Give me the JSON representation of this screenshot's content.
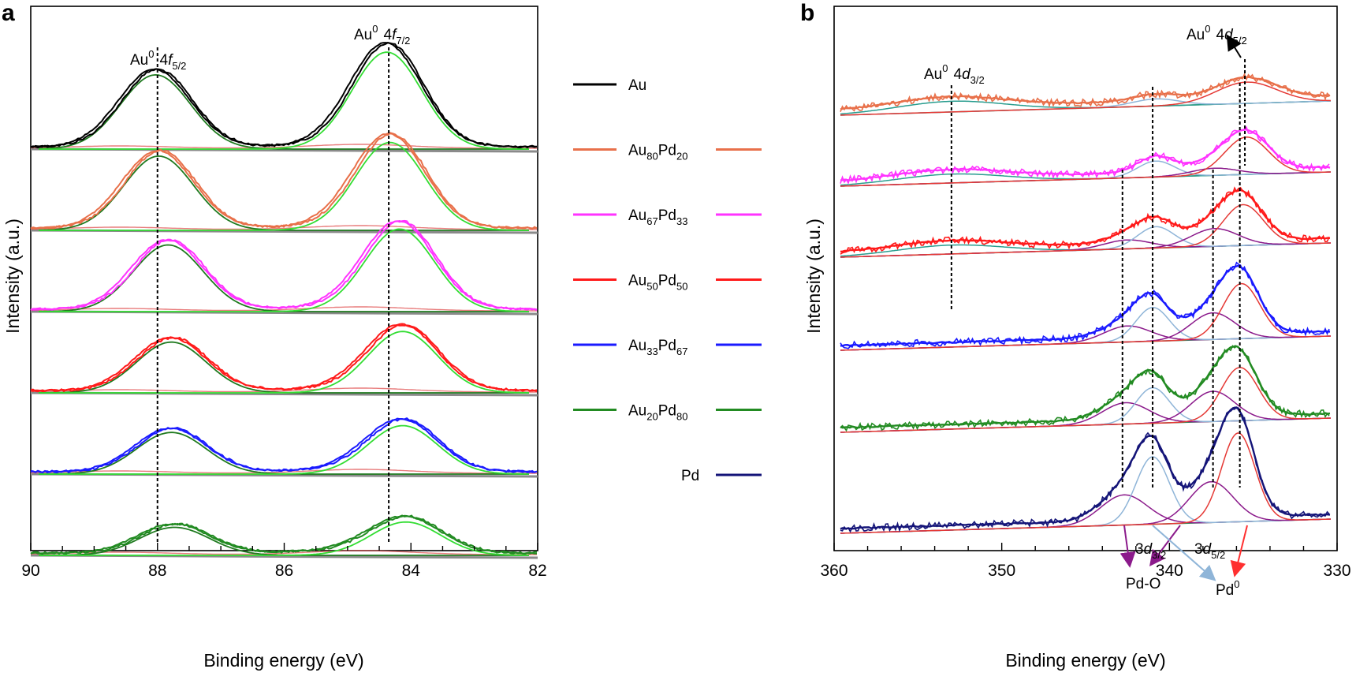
{
  "chart_data": [
    {
      "panel": "a",
      "type": "line",
      "title": "",
      "xlabel": "Binding energy (eV)",
      "ylabel": "Intensity (a.u.)",
      "xlim": [
        90,
        82
      ],
      "xticks": [
        90,
        88,
        86,
        84,
        82
      ],
      "x_reversed": true,
      "grid": false,
      "legend": {
        "placement": "right",
        "entries": [
          {
            "label": "Au",
            "color": "#000000"
          },
          {
            "label": "Au80Pd20",
            "color": "#e8704a"
          },
          {
            "label": "Au67Pd33",
            "color": "#ff33ff"
          },
          {
            "label": "Au50Pd50",
            "color": "#ff1a1a"
          },
          {
            "label": "Au33Pd67",
            "color": "#1a1aff"
          },
          {
            "label": "Au20Pd80",
            "color": "#228b22"
          },
          {
            "label": "Pd",
            "color": "#141478"
          }
        ]
      },
      "reference_lines": [
        {
          "x": 88.0,
          "label": "Au0 4f5/2"
        },
        {
          "x": 84.35,
          "label": "Au0 4f7/2"
        }
      ],
      "series": [
        {
          "name": "Au",
          "color": "#000000",
          "offset": 5,
          "peaks": [
            {
              "x": 88.0,
              "h": 0.98
            },
            {
              "x": 84.35,
              "h": 1.28
            }
          ]
        },
        {
          "name": "Au80Pd20",
          "color": "#e8704a",
          "offset": 4,
          "peaks": [
            {
              "x": 87.95,
              "h": 0.98
            },
            {
              "x": 84.3,
              "h": 1.16
            }
          ]
        },
        {
          "name": "Au67Pd33",
          "color": "#ff33ff",
          "offset": 3,
          "peaks": [
            {
              "x": 87.8,
              "h": 0.88
            },
            {
              "x": 84.15,
              "h": 1.09
            }
          ]
        },
        {
          "name": "Au50Pd50",
          "color": "#ff1a1a",
          "offset": 2,
          "peaks": [
            {
              "x": 87.75,
              "h": 0.67
            },
            {
              "x": 84.1,
              "h": 0.81
            }
          ]
        },
        {
          "name": "Au33Pd67",
          "color": "#1a1aff",
          "offset": 1,
          "peaks": [
            {
              "x": 87.75,
              "h": 0.55
            },
            {
              "x": 84.1,
              "h": 0.64
            }
          ]
        },
        {
          "name": "Au20Pd80",
          "color": "#228b22",
          "offset": 0,
          "peaks": [
            {
              "x": 87.7,
              "h": 0.37
            },
            {
              "x": 84.05,
              "h": 0.44
            }
          ]
        }
      ]
    },
    {
      "panel": "b",
      "type": "line",
      "title": "",
      "xlabel": "Binding energy (eV)",
      "ylabel": "Intensity (a.u.)",
      "xlim": [
        360,
        330
      ],
      "xticks": [
        360,
        350,
        340,
        330
      ],
      "x_reversed": true,
      "grid": false,
      "reference_lines": [
        {
          "x": 353.0,
          "label": "Au0 4d3/2"
        },
        {
          "x": 342.8,
          "label": "Pd-O 3d3/2"
        },
        {
          "x": 341.0,
          "label": "Pd0 3d3/2"
        },
        {
          "x": 337.4,
          "label": "Pd-O 3d5/2"
        },
        {
          "x": 335.8,
          "label": "Pd0 3d5/2"
        },
        {
          "x": 335.5,
          "label": "Au0 4d5/2"
        }
      ],
      "annotations": [
        "Au0 4d3/2",
        "Au0 4d5/2",
        "3d3/2",
        "3d5/2",
        "Pd-O",
        "Pd0"
      ],
      "series": [
        {
          "name": "Au80Pd20",
          "color": "#e8704a",
          "offset": 5,
          "peaks": [
            {
              "x": 353.0,
              "h": 0.3,
              "w": 3.2
            },
            {
              "x": 340.8,
              "h": 0.2,
              "w": 1.4
            },
            {
              "x": 335.4,
              "h": 0.6,
              "w": 1.8
            }
          ]
        },
        {
          "name": "Au67Pd33",
          "color": "#ff33ff",
          "offset": 4,
          "peaks": [
            {
              "x": 353.0,
              "h": 0.25,
              "w": 3.2
            },
            {
              "x": 340.8,
              "h": 0.45,
              "w": 1.1
            },
            {
              "x": 337.3,
              "h": 0.2,
              "w": 1.4
            },
            {
              "x": 335.4,
              "h": 1.05,
              "w": 1.3
            }
          ]
        },
        {
          "name": "Au50Pd50",
          "color": "#ff1a1a",
          "offset": 3,
          "peaks": [
            {
              "x": 353.0,
              "h": 0.25,
              "w": 3.2
            },
            {
              "x": 342.5,
              "h": 0.25,
              "w": 1.4
            },
            {
              "x": 340.8,
              "h": 0.6,
              "w": 1.1
            },
            {
              "x": 337.3,
              "h": 0.5,
              "w": 1.4
            },
            {
              "x": 335.6,
              "h": 1.15,
              "w": 1.2
            }
          ]
        },
        {
          "name": "Au33Pd67",
          "color": "#1a1aff",
          "offset": 2,
          "peaks": [
            {
              "x": 342.5,
              "h": 0.45,
              "w": 1.4
            },
            {
              "x": 341.0,
              "h": 0.95,
              "w": 1.0
            },
            {
              "x": 337.4,
              "h": 0.75,
              "w": 1.3
            },
            {
              "x": 335.7,
              "h": 1.55,
              "w": 1.1
            }
          ]
        },
        {
          "name": "Au20Pd80",
          "color": "#228b22",
          "offset": 1,
          "peaks": [
            {
              "x": 342.6,
              "h": 0.6,
              "w": 1.4
            },
            {
              "x": 341.0,
              "h": 1.0,
              "w": 1.0
            },
            {
              "x": 337.4,
              "h": 0.85,
              "w": 1.3
            },
            {
              "x": 335.8,
              "h": 1.5,
              "w": 1.1
            }
          ]
        },
        {
          "name": "Pd",
          "color": "#141478",
          "offset": 0,
          "peaks": [
            {
              "x": 342.7,
              "h": 0.85,
              "w": 1.4
            },
            {
              "x": 341.0,
              "h": 1.9,
              "w": 1.0
            },
            {
              "x": 337.5,
              "h": 1.15,
              "w": 1.3
            },
            {
              "x": 335.9,
              "h": 2.5,
              "w": 1.0
            }
          ]
        }
      ]
    }
  ]
}
